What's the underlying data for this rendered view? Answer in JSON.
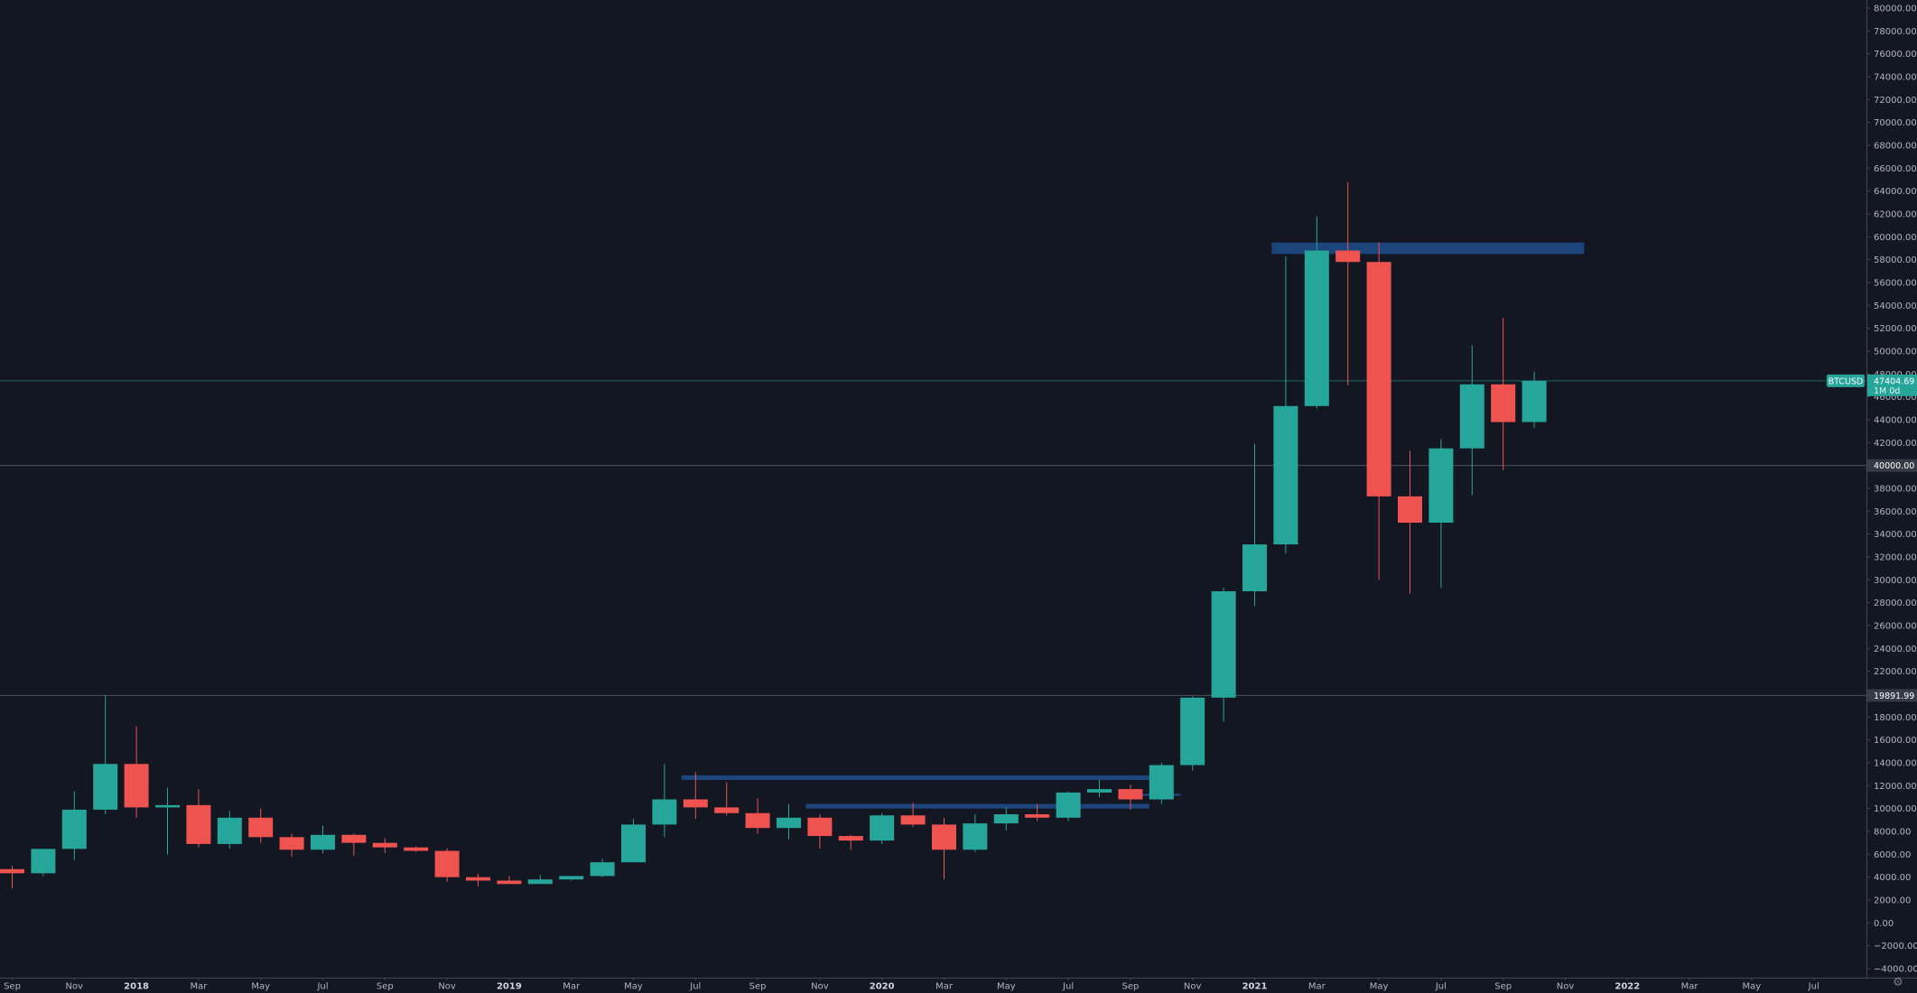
{
  "symbol": "BTCUSD",
  "last_price_label": "47404.69",
  "countdown_label": "1M 0d",
  "horizontal_line_labels": [
    "40000.00",
    "19891.99"
  ],
  "colors": {
    "background": "#131722",
    "up": "#26a69a",
    "down": "#ef5350",
    "zone": "#1f4e8c",
    "grid_line": "#434651",
    "axis_text": "#b2b5be"
  },
  "icons": {
    "settings": "gear-icon"
  },
  "chart_data": {
    "type": "candlestick",
    "interval": "1M",
    "ylim": [
      -4000,
      80000
    ],
    "y_ticks": [
      "80000.00",
      "78000.00",
      "76000.00",
      "74000.00",
      "72000.00",
      "70000.00",
      "68000.00",
      "66000.00",
      "64000.00",
      "62000.00",
      "60000.00",
      "58000.00",
      "56000.00",
      "54000.00",
      "52000.00",
      "50000.00",
      "48000.00",
      "46000.00",
      "44000.00",
      "42000.00",
      "40000.00",
      "38000.00",
      "36000.00",
      "34000.00",
      "32000.00",
      "30000.00",
      "28000.00",
      "26000.00",
      "24000.00",
      "22000.00",
      "20000.00",
      "18000.00",
      "16000.00",
      "14000.00",
      "12000.00",
      "10000.00",
      "8000.00",
      "6000.00",
      "4000.00",
      "2000.00",
      "0.00",
      "−2000.00",
      "−4000.00"
    ],
    "x_ticks": [
      {
        "label": "Sep",
        "date": "2017-09",
        "bold": false
      },
      {
        "label": "Nov",
        "date": "2017-11",
        "bold": false
      },
      {
        "label": "2018",
        "date": "2018-01",
        "bold": true
      },
      {
        "label": "Mar",
        "date": "2018-03",
        "bold": false
      },
      {
        "label": "May",
        "date": "2018-05",
        "bold": false
      },
      {
        "label": "Jul",
        "date": "2018-07",
        "bold": false
      },
      {
        "label": "Sep",
        "date": "2018-09",
        "bold": false
      },
      {
        "label": "Nov",
        "date": "2018-11",
        "bold": false
      },
      {
        "label": "2019",
        "date": "2019-01",
        "bold": true
      },
      {
        "label": "Mar",
        "date": "2019-03",
        "bold": false
      },
      {
        "label": "May",
        "date": "2019-05",
        "bold": false
      },
      {
        "label": "Jul",
        "date": "2019-07",
        "bold": false
      },
      {
        "label": "Sep",
        "date": "2019-09",
        "bold": false
      },
      {
        "label": "Nov",
        "date": "2019-11",
        "bold": false
      },
      {
        "label": "2020",
        "date": "2020-01",
        "bold": true
      },
      {
        "label": "Mar",
        "date": "2020-03",
        "bold": false
      },
      {
        "label": "May",
        "date": "2020-05",
        "bold": false
      },
      {
        "label": "Jul",
        "date": "2020-07",
        "bold": false
      },
      {
        "label": "Sep",
        "date": "2020-09",
        "bold": false
      },
      {
        "label": "Nov",
        "date": "2020-11",
        "bold": false
      },
      {
        "label": "2021",
        "date": "2021-01",
        "bold": true
      },
      {
        "label": "Mar",
        "date": "2021-03",
        "bold": false
      },
      {
        "label": "May",
        "date": "2021-05",
        "bold": false
      },
      {
        "label": "Jul",
        "date": "2021-07",
        "bold": false
      },
      {
        "label": "Sep",
        "date": "2021-09",
        "bold": false
      },
      {
        "label": "Nov",
        "date": "2021-11",
        "bold": false
      },
      {
        "label": "2022",
        "date": "2022-01",
        "bold": true
      },
      {
        "label": "Mar",
        "date": "2022-03",
        "bold": false
      },
      {
        "label": "May",
        "date": "2022-05",
        "bold": false
      },
      {
        "label": "Jul",
        "date": "2022-07",
        "bold": false
      }
    ],
    "candles": [
      {
        "date": "2017-09",
        "open": 4700,
        "high": 4980,
        "low": 3000,
        "close": 4340
      },
      {
        "date": "2017-10",
        "open": 4340,
        "high": 6500,
        "low": 4100,
        "close": 6470
      },
      {
        "date": "2017-11",
        "open": 6470,
        "high": 11500,
        "low": 5500,
        "close": 9900
      },
      {
        "date": "2017-12",
        "open": 9900,
        "high": 19891.99,
        "low": 9500,
        "close": 13900
      },
      {
        "date": "2018-01",
        "open": 13900,
        "high": 17200,
        "low": 9200,
        "close": 10100
      },
      {
        "date": "2018-02",
        "open": 10100,
        "high": 11800,
        "low": 6000,
        "close": 10300
      },
      {
        "date": "2018-03",
        "open": 10300,
        "high": 11700,
        "low": 6600,
        "close": 6900
      },
      {
        "date": "2018-04",
        "open": 6900,
        "high": 9800,
        "low": 6500,
        "close": 9200
      },
      {
        "date": "2018-05",
        "open": 9200,
        "high": 10000,
        "low": 7000,
        "close": 7500
      },
      {
        "date": "2018-06",
        "open": 7500,
        "high": 7800,
        "low": 5800,
        "close": 6400
      },
      {
        "date": "2018-07",
        "open": 6400,
        "high": 8500,
        "low": 6100,
        "close": 7700
      },
      {
        "date": "2018-08",
        "open": 7700,
        "high": 7800,
        "low": 5900,
        "close": 7000
      },
      {
        "date": "2018-09",
        "open": 7000,
        "high": 7400,
        "low": 6100,
        "close": 6600
      },
      {
        "date": "2018-10",
        "open": 6600,
        "high": 6700,
        "low": 6200,
        "close": 6300
      },
      {
        "date": "2018-11",
        "open": 6300,
        "high": 6500,
        "low": 3600,
        "close": 4000
      },
      {
        "date": "2018-12",
        "open": 4000,
        "high": 4300,
        "low": 3200,
        "close": 3700
      },
      {
        "date": "2019-01",
        "open": 3700,
        "high": 4100,
        "low": 3400,
        "close": 3400
      },
      {
        "date": "2019-02",
        "open": 3400,
        "high": 4200,
        "low": 3400,
        "close": 3800
      },
      {
        "date": "2019-03",
        "open": 3800,
        "high": 4100,
        "low": 3700,
        "close": 4100
      },
      {
        "date": "2019-04",
        "open": 4100,
        "high": 5600,
        "low": 4000,
        "close": 5300
      },
      {
        "date": "2019-05",
        "open": 5300,
        "high": 9100,
        "low": 5300,
        "close": 8600
      },
      {
        "date": "2019-06",
        "open": 8600,
        "high": 13900,
        "low": 7500,
        "close": 10800
      },
      {
        "date": "2019-07",
        "open": 10800,
        "high": 13200,
        "low": 9100,
        "close": 10100
      },
      {
        "date": "2019-08",
        "open": 10100,
        "high": 12300,
        "low": 9400,
        "close": 9600
      },
      {
        "date": "2019-09",
        "open": 9600,
        "high": 10900,
        "low": 7800,
        "close": 8300
      },
      {
        "date": "2019-10",
        "open": 8300,
        "high": 10400,
        "low": 7300,
        "close": 9200
      },
      {
        "date": "2019-11",
        "open": 9200,
        "high": 9500,
        "low": 6500,
        "close": 7600
      },
      {
        "date": "2019-12",
        "open": 7600,
        "high": 7700,
        "low": 6400,
        "close": 7200
      },
      {
        "date": "2020-01",
        "open": 7200,
        "high": 9600,
        "low": 6900,
        "close": 9400
      },
      {
        "date": "2020-02",
        "open": 9400,
        "high": 10500,
        "low": 8400,
        "close": 8600
      },
      {
        "date": "2020-03",
        "open": 8600,
        "high": 9200,
        "low": 3800,
        "close": 6400
      },
      {
        "date": "2020-04",
        "open": 6400,
        "high": 9500,
        "low": 6200,
        "close": 8700
      },
      {
        "date": "2020-05",
        "open": 8700,
        "high": 10100,
        "low": 8100,
        "close": 9500
      },
      {
        "date": "2020-06",
        "open": 9500,
        "high": 10400,
        "low": 8900,
        "close": 9200
      },
      {
        "date": "2020-07",
        "open": 9200,
        "high": 11500,
        "low": 8900,
        "close": 11400
      },
      {
        "date": "2020-08",
        "open": 11400,
        "high": 12500,
        "low": 11000,
        "close": 11700
      },
      {
        "date": "2020-09",
        "open": 11700,
        "high": 12100,
        "low": 9900,
        "close": 10800
      },
      {
        "date": "2020-10",
        "open": 10800,
        "high": 14000,
        "low": 10400,
        "close": 13800
      },
      {
        "date": "2020-11",
        "open": 13800,
        "high": 19800,
        "low": 13300,
        "close": 19700
      },
      {
        "date": "2020-12",
        "open": 19700,
        "high": 29300,
        "low": 17600,
        "close": 29000
      },
      {
        "date": "2021-01",
        "open": 29000,
        "high": 41900,
        "low": 27700,
        "close": 33100
      },
      {
        "date": "2021-02",
        "open": 33100,
        "high": 58300,
        "low": 32300,
        "close": 45200
      },
      {
        "date": "2021-03",
        "open": 45200,
        "high": 61800,
        "low": 45000,
        "close": 58800
      },
      {
        "date": "2021-04",
        "open": 58800,
        "high": 64800,
        "low": 47000,
        "close": 57800
      },
      {
        "date": "2021-05",
        "open": 57800,
        "high": 59500,
        "low": 30000,
        "close": 37300
      },
      {
        "date": "2021-06",
        "open": 37300,
        "high": 41300,
        "low": 28800,
        "close": 35000
      },
      {
        "date": "2021-07",
        "open": 35000,
        "high": 42300,
        "low": 29300,
        "close": 41500
      },
      {
        "date": "2021-08",
        "open": 41500,
        "high": 50500,
        "low": 37400,
        "close": 47100
      },
      {
        "date": "2021-09",
        "open": 47100,
        "high": 52900,
        "low": 39600,
        "close": 43800
      },
      {
        "date": "2021-10",
        "open": 43800,
        "high": 48200,
        "low": 43300,
        "close": 47404.69
      }
    ],
    "horizontal_lines": [
      47404.69,
      40000.0,
      19891.99
    ],
    "zones": [
      {
        "from": "2021-02",
        "to": "2021-12",
        "low": 58500,
        "high": 59500
      },
      {
        "from": "2019-07",
        "to": "2020-10",
        "low": 12500,
        "high": 12900
      },
      {
        "from": "2019-11",
        "to": "2020-10",
        "low": 10000,
        "high": 10400
      }
    ],
    "zone_lines": [
      {
        "from": "2020-09",
        "to": "2020-11",
        "value": 11200
      }
    ],
    "grid": false,
    "title": "",
    "xlabel": "",
    "ylabel": ""
  }
}
